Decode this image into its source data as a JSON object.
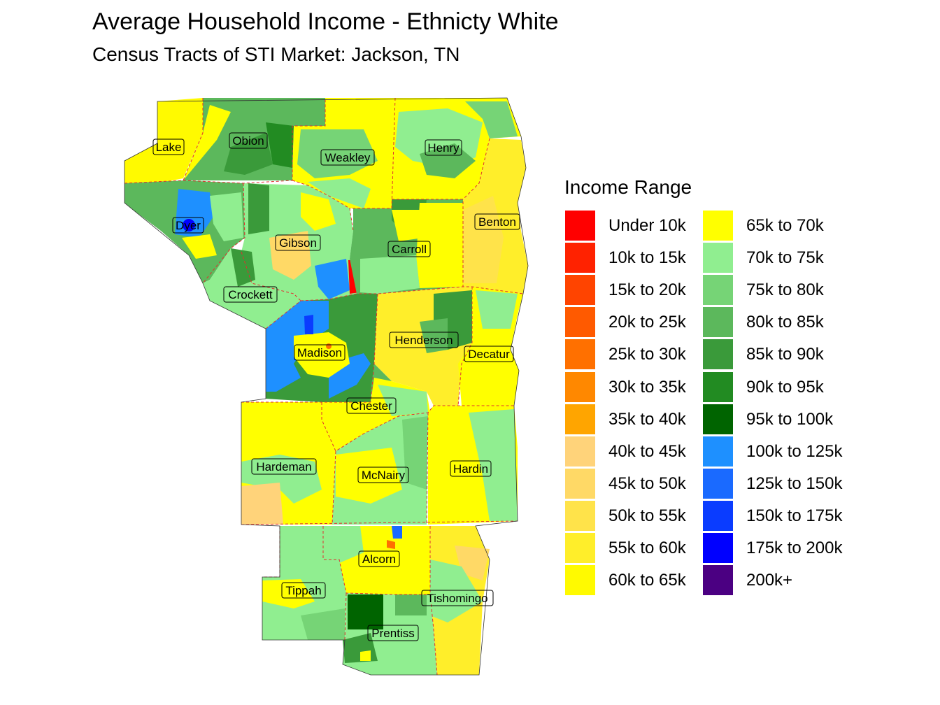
{
  "title": "Average Household Income - Ethnicty White",
  "subtitle": "Census Tracts of STI Market: Jackson, TN",
  "legend": {
    "title": "Income Range",
    "items": [
      {
        "label": "Under 10k",
        "color": "#FF0000"
      },
      {
        "label": "10k to 15k",
        "color": "#FF2200"
      },
      {
        "label": "15k to 20k",
        "color": "#FF4400"
      },
      {
        "label": "20k to 25k",
        "color": "#FF5A00"
      },
      {
        "label": "25k to 30k",
        "color": "#FF7000"
      },
      {
        "label": "30k to 35k",
        "color": "#FF8800"
      },
      {
        "label": "35k to 40k",
        "color": "#FFA500"
      },
      {
        "label": "40k to 45k",
        "color": "#FFD37A"
      },
      {
        "label": "45k to 50k",
        "color": "#FFD966"
      },
      {
        "label": "50k to 55k",
        "color": "#FFE34A"
      },
      {
        "label": "55k to 60k",
        "color": "#FFEE2A"
      },
      {
        "label": "60k to 65k",
        "color": "#FFFA00"
      },
      {
        "label": "65k to 70k",
        "color": "#FFFF00"
      },
      {
        "label": "70k to 75k",
        "color": "#90EE90"
      },
      {
        "label": "75k to 80k",
        "color": "#76D476"
      },
      {
        "label": "80k to 85k",
        "color": "#5CB85C"
      },
      {
        "label": "85k to 90k",
        "color": "#3A9A3A"
      },
      {
        "label": "90k to 95k",
        "color": "#228B22"
      },
      {
        "label": "95k to 100k",
        "color": "#006400"
      },
      {
        "label": "100k to 125k",
        "color": "#1E90FF"
      },
      {
        "label": "125k to 150k",
        "color": "#1A6AFF"
      },
      {
        "label": "150k to 175k",
        "color": "#0A3CFF"
      },
      {
        "label": "175k to 200k",
        "color": "#0000FF"
      },
      {
        "label": "200k+",
        "color": "#4B0082"
      }
    ]
  },
  "counties": [
    {
      "name": "Lake"
    },
    {
      "name": "Obion"
    },
    {
      "name": "Weakley"
    },
    {
      "name": "Henry"
    },
    {
      "name": "Dyer"
    },
    {
      "name": "Benton"
    },
    {
      "name": "Gibson"
    },
    {
      "name": "Carroll"
    },
    {
      "name": "Crockett"
    },
    {
      "name": "Henderson"
    },
    {
      "name": "Madison"
    },
    {
      "name": "Decatur"
    },
    {
      "name": "Chester"
    },
    {
      "name": "Hardeman"
    },
    {
      "name": "McNairy"
    },
    {
      "name": "Hardin"
    },
    {
      "name": "Alcorn"
    },
    {
      "name": "Tippah"
    },
    {
      "name": "Tishomingo"
    },
    {
      "name": "Prentiss"
    }
  ]
}
